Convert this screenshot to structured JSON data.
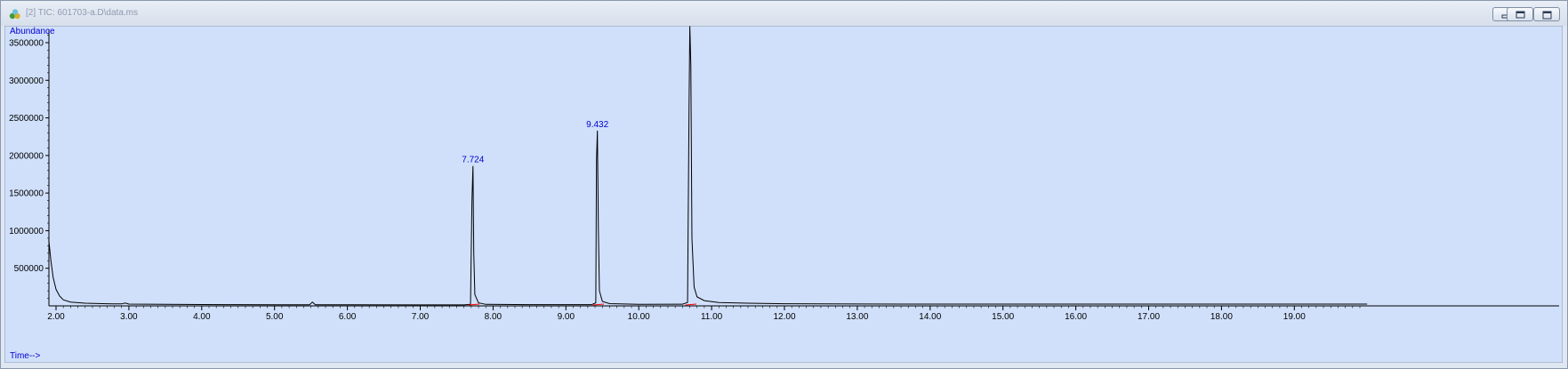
{
  "window": {
    "title": "[2] TIC: 601703-a.D\\data.ms",
    "controls": [
      "minimize-icon",
      "restore-icon",
      "close-icon"
    ]
  },
  "colors": {
    "plot_bg": "#d0e0fb",
    "trace": "#000000",
    "label": "#0000d0",
    "baseline": "#ff0000"
  },
  "chart_data": {
    "type": "line",
    "ylabel": "Abundance",
    "xlabel": "Time-->",
    "xlim": [
      1.9,
      20.0
    ],
    "ylim": [
      0,
      3750000
    ],
    "x_ticks": [
      "2.00",
      "3.00",
      "4.00",
      "5.00",
      "6.00",
      "7.00",
      "8.00",
      "9.00",
      "10.00",
      "11.00",
      "12.00",
      "13.00",
      "14.00",
      "15.00",
      "16.00",
      "17.00",
      "18.00",
      "19.00"
    ],
    "y_ticks": [
      "500000",
      "1000000",
      "1500000",
      "2000000",
      "2500000",
      "3000000",
      "3500000"
    ],
    "grid": false,
    "series": [
      {
        "points": [
          [
            1.9,
            880000
          ],
          [
            1.93,
            600000
          ],
          [
            1.96,
            380000
          ],
          [
            2.0,
            220000
          ],
          [
            2.05,
            130000
          ],
          [
            2.1,
            80000
          ],
          [
            2.2,
            50000
          ],
          [
            2.4,
            35000
          ],
          [
            2.7,
            28000
          ],
          [
            2.9,
            26000
          ],
          [
            2.95,
            38000
          ],
          [
            3.0,
            24000
          ],
          [
            3.5,
            20000
          ],
          [
            4.0,
            18000
          ],
          [
            4.5,
            16000
          ],
          [
            5.0,
            15000
          ],
          [
            5.48,
            15000
          ],
          [
            5.52,
            50000
          ],
          [
            5.56,
            15000
          ],
          [
            6.0,
            15000
          ],
          [
            7.0,
            14000
          ],
          [
            7.6,
            14000
          ],
          [
            7.69,
            20000
          ],
          [
            7.71,
            1400000
          ],
          [
            7.724,
            1860000
          ],
          [
            7.735,
            700000
          ],
          [
            7.75,
            150000
          ],
          [
            7.8,
            40000
          ],
          [
            7.9,
            20000
          ],
          [
            8.5,
            16000
          ],
          [
            9.35,
            16000
          ],
          [
            9.41,
            40000
          ],
          [
            9.42,
            1950000
          ],
          [
            9.432,
            2330000
          ],
          [
            9.445,
            1050000
          ],
          [
            9.46,
            200000
          ],
          [
            9.5,
            60000
          ],
          [
            9.6,
            30000
          ],
          [
            10.0,
            20000
          ],
          [
            10.6,
            22000
          ],
          [
            10.67,
            45000
          ],
          [
            10.69,
            2600000
          ],
          [
            10.701,
            3720000
          ],
          [
            10.715,
            3200000
          ],
          [
            10.73,
            900000
          ],
          [
            10.76,
            250000
          ],
          [
            10.8,
            120000
          ],
          [
            10.9,
            70000
          ],
          [
            11.1,
            45000
          ],
          [
            11.5,
            35000
          ],
          [
            12.0,
            28000
          ],
          [
            13.0,
            25000
          ],
          [
            14.0,
            24000
          ],
          [
            16.0,
            23000
          ],
          [
            18.0,
            23000
          ],
          [
            20.0,
            23000
          ]
        ]
      }
    ],
    "peaks": [
      {
        "rt": "7.724",
        "x": 7.724,
        "y": 1860000
      },
      {
        "rt": "9.432",
        "x": 9.432,
        "y": 2330000
      },
      {
        "rt": "10.701",
        "x": 10.701,
        "y": 3720000
      }
    ]
  }
}
